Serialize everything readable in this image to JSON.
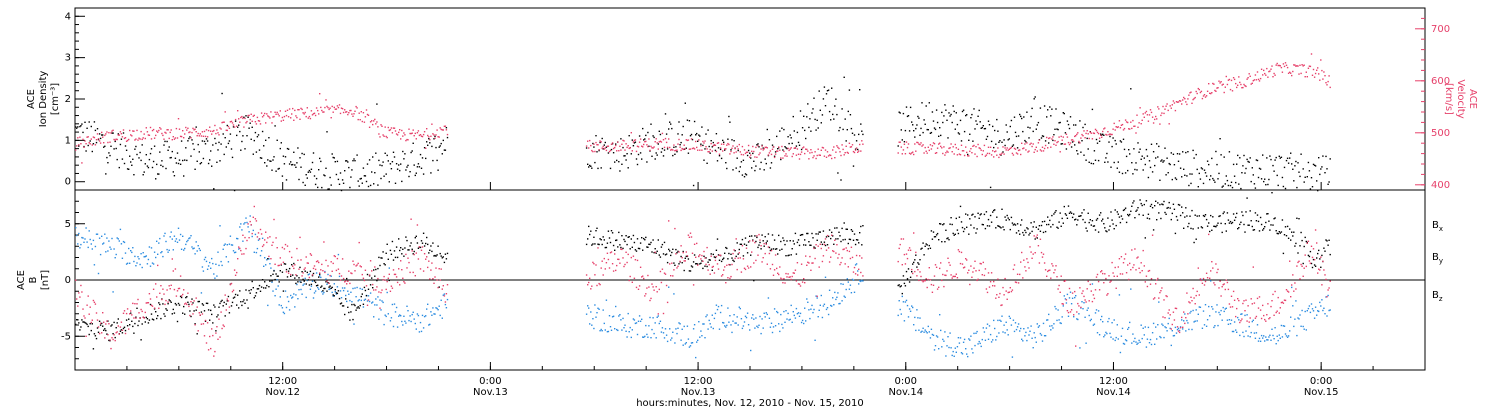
{
  "chart_data": {
    "type": "scatter",
    "title": "",
    "xlabel": "hours:minutes, Nov. 12, 2010 - Nov. 15, 2010",
    "x_ticks": [
      {
        "hour": 12,
        "time": "12:00",
        "date": "Nov.12"
      },
      {
        "hour": 24,
        "time": "0:00",
        "date": "Nov.13"
      },
      {
        "hour": 36,
        "time": "12:00",
        "date": "Nov.13"
      },
      {
        "hour": 48,
        "time": "0:00",
        "date": "Nov.14"
      },
      {
        "hour": 60,
        "time": "12:00",
        "date": "Nov.14"
      },
      {
        "hour": 72,
        "time": "0:00",
        "date": "Nov.15"
      }
    ],
    "xlim_hours": [
      0,
      78
    ],
    "data_gaps_hours": [
      [
        21.5,
        29.5
      ],
      [
        45.5,
        47.5
      ]
    ],
    "panels": [
      {
        "id": "density_velocity",
        "left_axis": {
          "label_lines": [
            "ACE",
            "Ion Density",
            "[cm⁻³]"
          ],
          "ylim": [
            -0.2,
            4.2
          ],
          "ticks": [
            "0",
            "1",
            "2",
            "3",
            "4"
          ]
        },
        "right_axis": {
          "label_lines": [
            "ACE",
            "Velocity",
            "[km/s]"
          ],
          "ylim": [
            390,
            740
          ],
          "ticks": [
            "400",
            "500",
            "600",
            "700"
          ],
          "color": "#e6406a"
        },
        "series": [
          {
            "name": "Ion Density",
            "color": "#000000",
            "axis": "left",
            "hours": [
              0,
              2,
              4,
              6,
              8,
              10,
              12,
              14,
              16,
              18,
              20,
              21.5,
              29.5,
              31.5,
              33.5,
              35.5,
              37.5,
              39.5,
              41.5,
              43.5,
              45.5,
              47.5,
              49.5,
              51.5,
              53.5,
              55.5,
              57.5,
              59.5,
              61.5,
              63.5,
              65.5,
              67.5,
              69.5,
              71.5,
              72.5
            ],
            "values": [
              1.2,
              0.9,
              0.5,
              0.6,
              0.8,
              1.2,
              0.5,
              0.3,
              0.2,
              0.3,
              0.6,
              1.0,
              0.8,
              0.7,
              1.0,
              1.1,
              0.7,
              0.5,
              1.2,
              2.0,
              0.9,
              1.3,
              1.6,
              1.4,
              1.1,
              1.5,
              1.2,
              0.7,
              0.6,
              0.4,
              0.3,
              0.3,
              0.3,
              0.2,
              0.2
            ]
          },
          {
            "name": "Velocity",
            "color": "#e6406a",
            "axis": "right",
            "hours": [
              0,
              2,
              4,
              6,
              8,
              10,
              12,
              14,
              16,
              18,
              20,
              21.5,
              29.5,
              31.5,
              33.5,
              35.5,
              37.5,
              39.5,
              41.5,
              43.5,
              45.5,
              47.5,
              49.5,
              51.5,
              53.5,
              55.5,
              57.5,
              59.5,
              61.5,
              63.5,
              65.5,
              67.5,
              69.5,
              71.5,
              72.5
            ],
            "values": [
              480,
              495,
              500,
              500,
              505,
              525,
              535,
              540,
              545,
              500,
              495,
              510,
              475,
              475,
              480,
              478,
              470,
              465,
              462,
              462,
              475,
              472,
              470,
              468,
              465,
              475,
              490,
              505,
              525,
              555,
              585,
              600,
              625,
              620,
              600
            ]
          }
        ]
      },
      {
        "id": "magnetic_field",
        "left_axis": {
          "label_lines": [
            "ACE",
            "B",
            "[nT]"
          ],
          "ylim": [
            -8,
            8
          ],
          "ticks": [
            "-5",
            "0",
            "5"
          ]
        },
        "zero_line": true,
        "series": [
          {
            "name": "Bx",
            "legend_base": "B",
            "legend_sub": "x",
            "color": "#000000",
            "hours": [
              0,
              2,
              4,
              6,
              8,
              10,
              12,
              14,
              16,
              18,
              20,
              21.5,
              29.5,
              31.5,
              33.5,
              35.5,
              37.5,
              39.5,
              41.5,
              43.5,
              45.5,
              47.5,
              49.5,
              51.5,
              53.5,
              55.5,
              57.5,
              59.5,
              61.5,
              63.5,
              65.5,
              67.5,
              69.5,
              71.5,
              72.5
            ],
            "values": [
              -4,
              -4.5,
              -3,
              -2,
              -3,
              -1,
              1,
              0,
              -3,
              2.5,
              3.5,
              2,
              4,
              3.5,
              3,
              1.5,
              2,
              3.5,
              3,
              4,
              4,
              -1,
              4,
              5,
              5.5,
              4.5,
              6,
              5,
              6.5,
              6,
              5,
              5.5,
              5,
              2,
              3
            ]
          },
          {
            "name": "By",
            "legend_base": "B",
            "legend_sub": "y",
            "color": "#2b8ce0",
            "hours": [
              0,
              2,
              4,
              6,
              8,
              10,
              12,
              14,
              16,
              18,
              20,
              21.5,
              29.5,
              31.5,
              33.5,
              35.5,
              37.5,
              39.5,
              41.5,
              43.5,
              45.5,
              47.5,
              49.5,
              51.5,
              53.5,
              55.5,
              57.5,
              59.5,
              61.5,
              63.5,
              65.5,
              67.5,
              69.5,
              71.5,
              72.5
            ],
            "values": [
              4,
              3,
              2,
              4,
              1,
              5,
              -2,
              0,
              -1,
              -3,
              -3.5,
              -2,
              -3,
              -4,
              -4,
              -5,
              -3,
              -4,
              -3,
              -2,
              1,
              -2,
              -5,
              -6,
              -4,
              -5,
              -2,
              -4,
              -5,
              -4,
              -3,
              -4,
              -5,
              -3,
              -2
            ]
          },
          {
            "name": "Bz",
            "legend_base": "B",
            "legend_sub": "z",
            "color": "#e6406a",
            "hours": [
              0,
              2,
              4,
              6,
              8,
              10,
              12,
              14,
              16,
              18,
              20,
              21.5,
              29.5,
              31.5,
              33.5,
              35.5,
              37.5,
              39.5,
              41.5,
              43.5,
              45.5,
              47.5,
              49.5,
              51.5,
              53.5,
              55.5,
              57.5,
              59.5,
              61.5,
              63.5,
              65.5,
              67.5,
              69.5,
              71.5,
              72.5
            ],
            "values": [
              -1,
              -5,
              -2,
              0,
              -6,
              5,
              2,
              1,
              1,
              0,
              2,
              -1,
              0,
              2,
              -1,
              3,
              1,
              3,
              0,
              3,
              1,
              3,
              0,
              2,
              -1,
              3,
              -2,
              0,
              2,
              -4,
              1,
              -3,
              -2,
              3,
              -1
            ]
          }
        ]
      }
    ]
  }
}
